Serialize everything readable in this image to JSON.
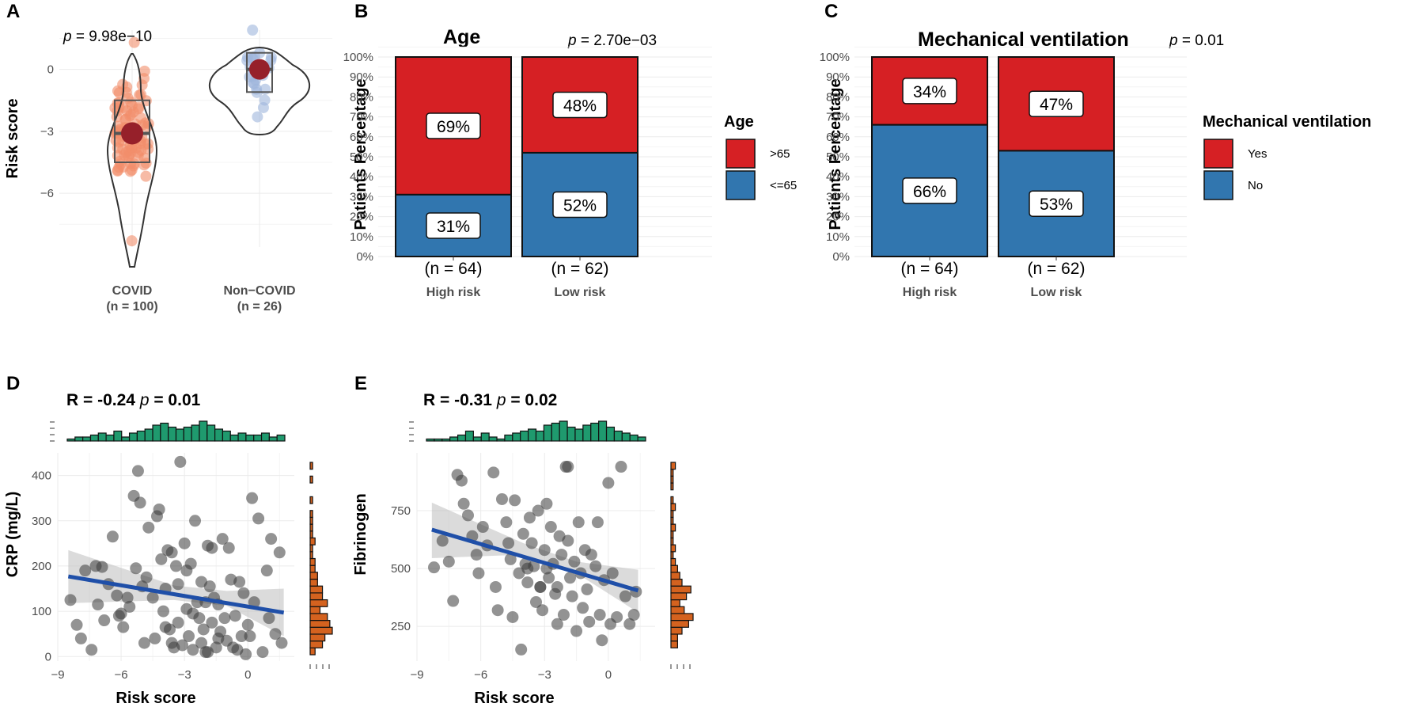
{
  "panels": {
    "A": {
      "label": "A",
      "p_prefix": "p",
      "p_value": " = 9.98e−10",
      "ylabel": "Risk score",
      "yticks": [
        0,
        -3,
        -6
      ],
      "ylim": [
        -8.6,
        1.9
      ],
      "groups": [
        {
          "name": "COVID",
          "n": "(n = 100)",
          "color": "#f28e6b",
          "q1": -4.5,
          "median": -3.1,
          "q3": -1.5,
          "mean": -3.1,
          "min": -8.3,
          "max": 1.3,
          "n_points": 100
        },
        {
          "name": "Non−COVID",
          "n": "(n = 26)",
          "color": "#9fb6dc",
          "q1": -1.1,
          "median": 0.0,
          "q3": 0.8,
          "mean": 0.0,
          "min": -2.3,
          "max": 1.9,
          "n_points": 26
        }
      ]
    },
    "B": {
      "label": "B",
      "title": "Age",
      "p_prefix": "p",
      "p_value": " = 2.70e−03",
      "ylabel": "Patients Percentage",
      "legend_title": "Age",
      "legend": [
        {
          "label": ">65",
          "color": "#d62024"
        },
        {
          "label": "<=65",
          "color": "#3176af"
        }
      ],
      "bars": [
        {
          "group": "High risk",
          "n": "(n = 64)",
          "top_pct": 69,
          "bottom_pct": 31,
          "top_label": "69%",
          "bottom_label": "31%"
        },
        {
          "group": "Low risk",
          "n": "(n = 62)",
          "top_pct": 48,
          "bottom_pct": 52,
          "top_label": "48%",
          "bottom_label": "52%"
        }
      ]
    },
    "C": {
      "label": "C",
      "title": "Mechanical ventilation",
      "p_prefix": "p",
      "p_value": " = 0.01",
      "ylabel": "Patients Percentage",
      "legend_title": "Mechanical ventilation",
      "legend": [
        {
          "label": "Yes",
          "color": "#d62024"
        },
        {
          "label": "No",
          "color": "#3176af"
        }
      ],
      "bars": [
        {
          "group": "High risk",
          "n": "(n = 64)",
          "top_pct": 34,
          "bottom_pct": 66,
          "top_label": "34%",
          "bottom_label": "66%"
        },
        {
          "group": "Low risk",
          "n": "(n = 62)",
          "top_pct": 47,
          "bottom_pct": 53,
          "top_label": "47%",
          "bottom_label": "53%"
        }
      ]
    },
    "D": {
      "label": "D",
      "stat_r": "R = -0.24",
      "p_prefix": "p",
      "stat_p": " = 0.01",
      "xlabel": "Risk score",
      "ylabel": "CRP (mg/L)",
      "xlim": [
        -9,
        2.2
      ],
      "ylim": [
        -10,
        450
      ],
      "xticks": [
        -9,
        -6,
        -3,
        0
      ],
      "yticks": [
        0,
        100,
        200,
        300,
        400
      ],
      "fit": {
        "x0": -8.5,
        "y0": 177,
        "x1": 1.7,
        "y1": 97
      },
      "band": {
        "lower": [
          [
            -8.5,
            118
          ],
          [
            -3.5,
            125
          ],
          [
            -1.0,
            112
          ],
          [
            1.7,
            45
          ]
        ],
        "upper": [
          [
            -8.5,
            235
          ],
          [
            -3.5,
            157
          ],
          [
            -1.0,
            145
          ],
          [
            1.7,
            150
          ]
        ]
      },
      "top_hist": [
        1,
        2,
        2,
        3,
        4,
        3,
        5,
        2,
        4,
        5,
        6,
        8,
        9,
        7,
        6,
        7,
        8,
        10,
        8,
        6,
        5,
        3,
        4,
        3,
        3,
        4,
        2,
        3
      ],
      "right_hist": [
        2,
        5,
        6,
        9,
        8,
        7,
        4,
        7,
        5,
        5,
        3,
        3,
        2,
        2,
        1,
        1,
        2,
        1,
        1,
        1,
        1,
        0,
        1,
        0,
        0,
        1,
        0,
        1
      ],
      "points": [
        [
          -8.4,
          125
        ],
        [
          -7.9,
          40
        ],
        [
          -7.7,
          190
        ],
        [
          -7.4,
          15
        ],
        [
          -7.2,
          200
        ],
        [
          -7.1,
          115
        ],
        [
          -6.9,
          198
        ],
        [
          -6.8,
          80
        ],
        [
          -6.6,
          160
        ],
        [
          -6.4,
          265
        ],
        [
          -6.2,
          135
        ],
        [
          -6.0,
          95
        ],
        [
          -5.9,
          65
        ],
        [
          -5.7,
          130
        ],
        [
          -5.4,
          355
        ],
        [
          -5.3,
          195
        ],
        [
          -5.2,
          410
        ],
        [
          -5.1,
          340
        ],
        [
          -5.0,
          155
        ],
        [
          -4.8,
          175
        ],
        [
          -4.7,
          285
        ],
        [
          -4.5,
          130
        ],
        [
          -4.3,
          310
        ],
        [
          -4.2,
          325
        ],
        [
          -4.1,
          215
        ],
        [
          -4.0,
          100
        ],
        [
          -3.9,
          150
        ],
        [
          -3.8,
          235
        ],
        [
          -3.7,
          60
        ],
        [
          -3.6,
          30
        ],
        [
          -3.5,
          20
        ],
        [
          -3.4,
          200
        ],
        [
          -3.3,
          75
        ],
        [
          -3.2,
          430
        ],
        [
          -3.1,
          25
        ],
        [
          -3.0,
          250
        ],
        [
          -2.9,
          105
        ],
        [
          -2.8,
          45
        ],
        [
          -2.7,
          205
        ],
        [
          -2.6,
          15
        ],
        [
          -2.5,
          300
        ],
        [
          -2.4,
          120
        ],
        [
          -2.3,
          85
        ],
        [
          -2.2,
          165
        ],
        [
          -2.1,
          60
        ],
        [
          -2.0,
          10
        ],
        [
          -1.9,
          245
        ],
        [
          -1.8,
          155
        ],
        [
          -1.7,
          75
        ],
        [
          -1.6,
          130
        ],
        [
          -1.5,
          20
        ],
        [
          -1.4,
          115
        ],
        [
          -1.3,
          55
        ],
        [
          -1.2,
          260
        ],
        [
          -1.1,
          85
        ],
        [
          -1.0,
          35
        ],
        [
          -0.9,
          240
        ],
        [
          -0.8,
          170
        ],
        [
          -0.6,
          90
        ],
        [
          -0.5,
          15
        ],
        [
          -0.4,
          165
        ],
        [
          -0.2,
          140
        ],
        [
          -0.1,
          5
        ],
        [
          0.0,
          70
        ],
        [
          0.1,
          45
        ],
        [
          0.2,
          350
        ],
        [
          0.3,
          120
        ],
        [
          0.5,
          305
        ],
        [
          0.7,
          10
        ],
        [
          0.9,
          190
        ],
        [
          1.1,
          260
        ],
        [
          1.3,
          50
        ],
        [
          1.5,
          230
        ],
        [
          1.6,
          30
        ],
        [
          -8.1,
          70
        ],
        [
          -5.6,
          110
        ],
        [
          -4.4,
          40
        ],
        [
          -3.9,
          65
        ],
        [
          -2.2,
          30
        ],
        [
          -1.7,
          240
        ],
        [
          -1.4,
          40
        ],
        [
          -0.7,
          20
        ],
        [
          -3.3,
          160
        ],
        [
          -2.9,
          190
        ],
        [
          -4.9,
          30
        ],
        [
          -6.1,
          90
        ],
        [
          -2.6,
          95
        ],
        [
          -1.9,
          10
        ],
        [
          -0.3,
          45
        ],
        [
          1.0,
          85
        ],
        [
          -3.6,
          230
        ],
        [
          -2.0,
          120
        ]
      ]
    },
    "E": {
      "label": "E",
      "stat_r": "R = -0.31",
      "p_prefix": "p",
      "stat_p": " = 0.02",
      "xlabel": "Risk score",
      "ylabel": "Fibrinogen",
      "xlim": [
        -9,
        2.2
      ],
      "ylim": [
        100,
        1000
      ],
      "xticks": [
        -9,
        -6,
        -3,
        0
      ],
      "yticks": [
        250,
        500,
        750
      ],
      "fit": {
        "x0": -8.3,
        "y0": 668,
        "x1": 1.4,
        "y1": 405
      },
      "band": {
        "lower": [
          [
            -8.3,
            545
          ],
          [
            -4.0,
            560
          ],
          [
            -1.5,
            480
          ],
          [
            1.4,
            310
          ]
        ],
        "upper": [
          [
            -8.3,
            785
          ],
          [
            -4.0,
            610
          ],
          [
            -1.5,
            530
          ],
          [
            1.4,
            495
          ]
        ]
      },
      "top_hist": [
        1,
        1,
        1,
        2,
        3,
        5,
        2,
        4,
        2,
        1,
        3,
        4,
        5,
        6,
        5,
        8,
        9,
        10,
        7,
        6,
        8,
        9,
        10,
        7,
        5,
        4,
        3,
        2
      ],
      "right_hist": [
        0,
        3,
        3,
        5,
        8,
        10,
        6,
        4,
        7,
        9,
        5,
        4,
        3,
        2,
        1,
        2,
        1,
        1,
        2,
        1,
        1,
        2,
        1,
        0,
        1,
        1,
        1,
        2
      ],
      "points": [
        [
          -8.2,
          505
        ],
        [
          -7.8,
          620
        ],
        [
          -7.5,
          530
        ],
        [
          -7.3,
          360
        ],
        [
          -7.1,
          905
        ],
        [
          -6.9,
          880
        ],
        [
          -6.8,
          780
        ],
        [
          -6.6,
          730
        ],
        [
          -6.4,
          640
        ],
        [
          -6.2,
          560
        ],
        [
          -6.1,
          480
        ],
        [
          -5.9,
          680
        ],
        [
          -5.7,
          600
        ],
        [
          -5.4,
          915
        ],
        [
          -5.3,
          420
        ],
        [
          -5.2,
          320
        ],
        [
          -5.0,
          800
        ],
        [
          -4.8,
          700
        ],
        [
          -4.7,
          610
        ],
        [
          -4.6,
          540
        ],
        [
          -4.5,
          290
        ],
        [
          -4.4,
          795
        ],
        [
          -4.2,
          480
        ],
        [
          -4.1,
          150
        ],
        [
          -4.0,
          650
        ],
        [
          -3.9,
          520
        ],
        [
          -3.8,
          440
        ],
        [
          -3.7,
          720
        ],
        [
          -3.6,
          610
        ],
        [
          -3.5,
          510
        ],
        [
          -3.4,
          355
        ],
        [
          -3.3,
          750
        ],
        [
          -3.2,
          420
        ],
        [
          -3.1,
          320
        ],
        [
          -3.0,
          580
        ],
        [
          -2.9,
          780
        ],
        [
          -2.8,
          460
        ],
        [
          -2.7,
          680
        ],
        [
          -2.6,
          520
        ],
        [
          -2.5,
          390
        ],
        [
          -2.4,
          260
        ],
        [
          -2.3,
          640
        ],
        [
          -2.2,
          560
        ],
        [
          -2.1,
          300
        ],
        [
          -2.0,
          940
        ],
        [
          -1.9,
          620
        ],
        [
          -1.8,
          460
        ],
        [
          -1.7,
          380
        ],
        [
          -1.6,
          530
        ],
        [
          -1.5,
          230
        ],
        [
          -1.4,
          700
        ],
        [
          -1.3,
          480
        ],
        [
          -1.2,
          330
        ],
        [
          -1.1,
          580
        ],
        [
          -1.0,
          410
        ],
        [
          -0.9,
          270
        ],
        [
          -0.8,
          560
        ],
        [
          -0.6,
          510
        ],
        [
          -0.5,
          700
        ],
        [
          -0.4,
          300
        ],
        [
          -0.3,
          190
        ],
        [
          -0.2,
          450
        ],
        [
          0.0,
          870
        ],
        [
          0.1,
          260
        ],
        [
          0.2,
          480
        ],
        [
          0.4,
          290
        ],
        [
          0.6,
          940
        ],
        [
          0.8,
          380
        ],
        [
          1.0,
          260
        ],
        [
          1.2,
          300
        ],
        [
          1.3,
          400
        ],
        [
          -3.8,
          500
        ],
        [
          -2.4,
          420
        ],
        [
          -1.9,
          940
        ],
        [
          -2.9,
          500
        ],
        [
          -3.2,
          420
        ]
      ]
    }
  }
}
